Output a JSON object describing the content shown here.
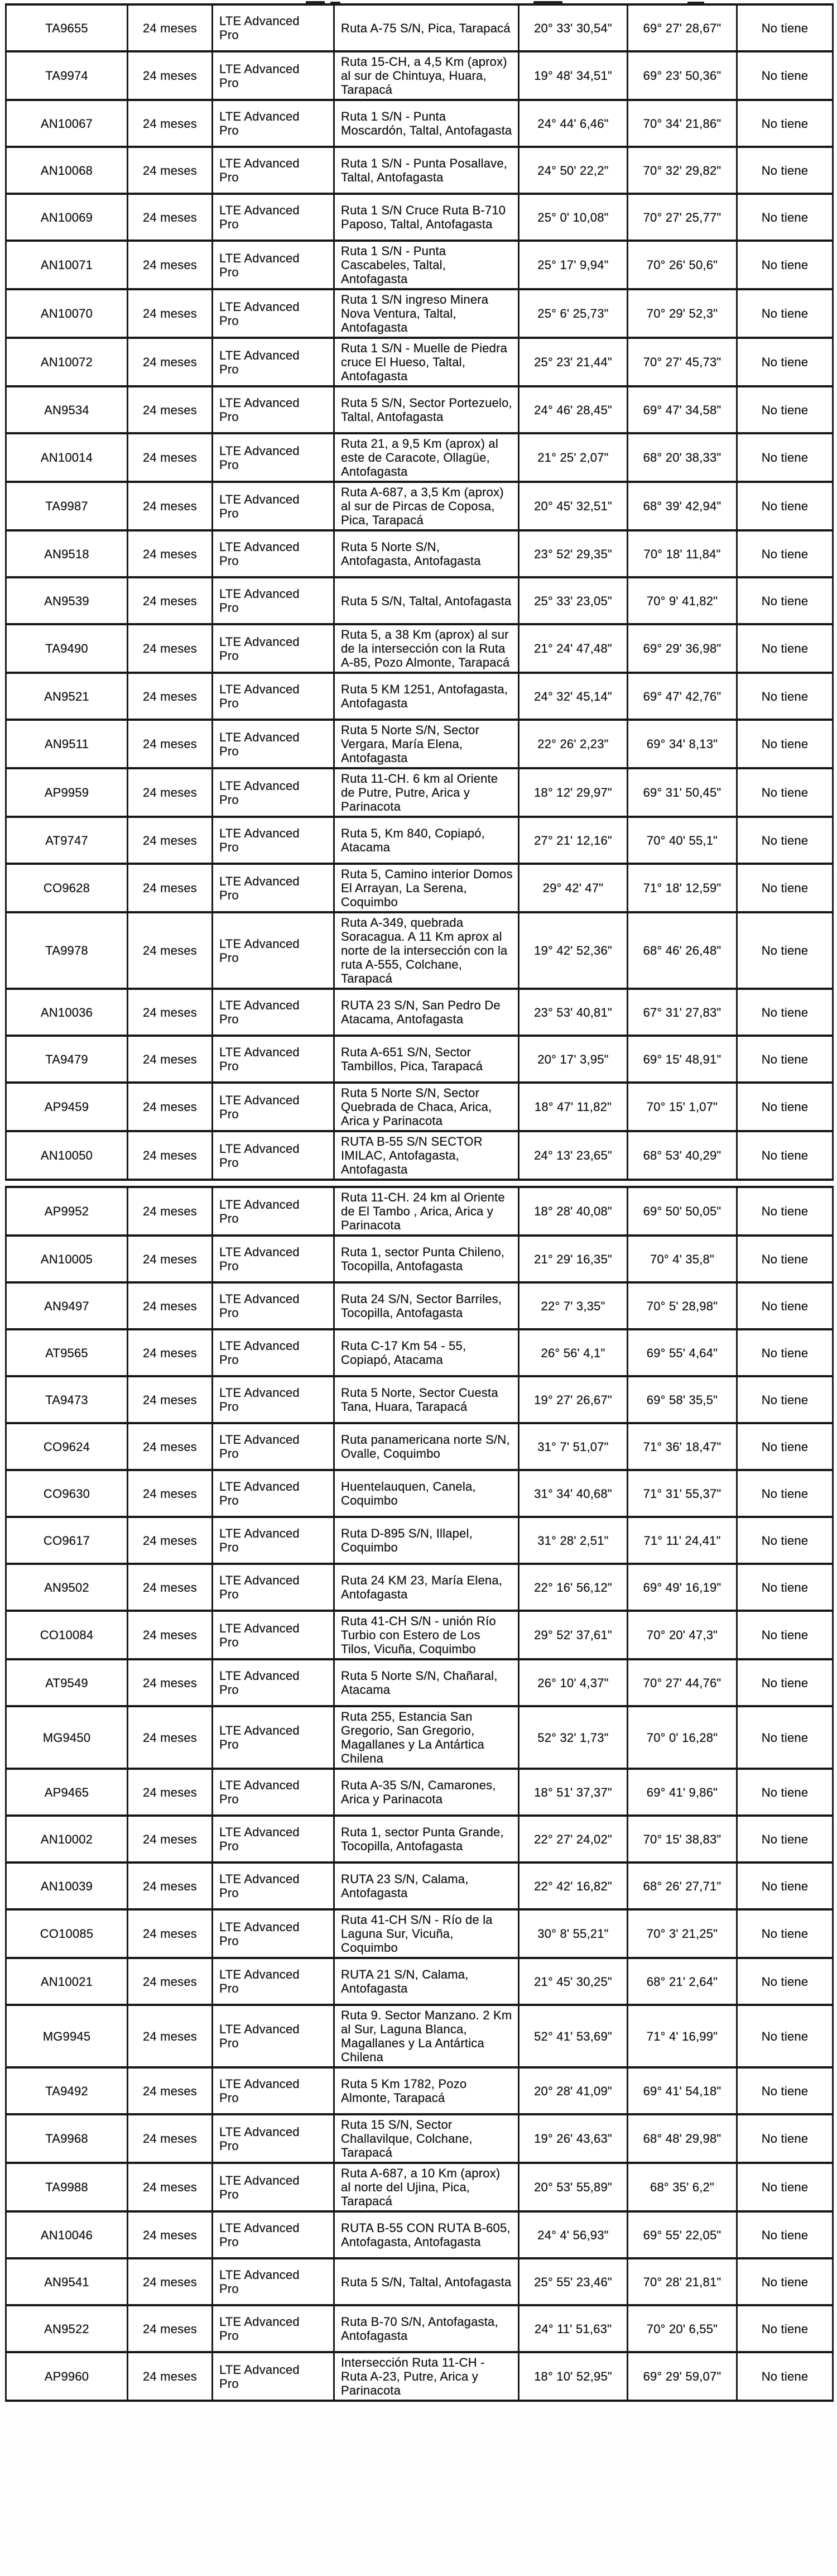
{
  "document": {
    "column_keys": [
      "codigo",
      "plazo",
      "tecnologia",
      "ubicacion",
      "latitud",
      "longitud",
      "observacion"
    ],
    "tables": [
      {
        "rows": [
          {
            "codigo": "TA9655",
            "plazo": "24 meses",
            "tecnologia": "LTE Advanced Pro",
            "ubicacion": "Ruta A-75 S/N, Pica, Tarapacá",
            "latitud": "20° 33' 30,54\"",
            "longitud": "69° 27' 28,67\"",
            "observacion": "No tiene"
          },
          {
            "codigo": "TA9974",
            "plazo": "24 meses",
            "tecnologia": "LTE Advanced Pro",
            "ubicacion": "Ruta 15-CH, a 4,5 Km (aprox) al sur de Chintuya, Huara, Tarapacá",
            "latitud": "19° 48' 34,51\"",
            "longitud": "69° 23' 50,36\"",
            "observacion": "No tiene"
          },
          {
            "codigo": "AN10067",
            "plazo": "24 meses",
            "tecnologia": "LTE Advanced Pro",
            "ubicacion": "Ruta 1 S/N - Punta Moscardón, Taltal, Antofagasta",
            "latitud": "24° 44' 6,46\"",
            "longitud": "70° 34' 21,86\"",
            "observacion": "No tiene"
          },
          {
            "codigo": "AN10068",
            "plazo": "24 meses",
            "tecnologia": "LTE Advanced Pro",
            "ubicacion": "Ruta 1 S/N - Punta Posallave, Taltal, Antofagasta",
            "latitud": "24° 50' 22,2\"",
            "longitud": "70° 32' 29,82\"",
            "observacion": "No tiene"
          },
          {
            "codigo": "AN10069",
            "plazo": "24 meses",
            "tecnologia": "LTE Advanced Pro",
            "ubicacion": "Ruta 1 S/N Cruce Ruta B-710 Paposo, Taltal, Antofagasta",
            "latitud": "25° 0' 10,08\"",
            "longitud": "70° 27' 25,77\"",
            "observacion": "No tiene"
          },
          {
            "codigo": "AN10071",
            "plazo": "24 meses",
            "tecnologia": "LTE Advanced Pro",
            "ubicacion": "Ruta 1 S/N - Punta Cascabeles, Taltal, Antofagasta",
            "latitud": "25° 17' 9,94\"",
            "longitud": "70° 26' 50,6\"",
            "observacion": "No tiene"
          },
          {
            "codigo": "AN10070",
            "plazo": "24 meses",
            "tecnologia": "LTE Advanced Pro",
            "ubicacion": "Ruta 1 S/N ingreso Minera Nova Ventura, Taltal, Antofagasta",
            "latitud": "25° 6' 25,73\"",
            "longitud": "70° 29' 52,3\"",
            "observacion": "No tiene"
          },
          {
            "codigo": "AN10072",
            "plazo": "24 meses",
            "tecnologia": "LTE Advanced Pro",
            "ubicacion": "Ruta 1 S/N - Muelle de Piedra cruce El Hueso, Taltal, Antofagasta",
            "latitud": "25° 23' 21,44\"",
            "longitud": "70° 27' 45,73\"",
            "observacion": "No tiene"
          },
          {
            "codigo": "AN9534",
            "plazo": "24 meses",
            "tecnologia": "LTE Advanced Pro",
            "ubicacion": "Ruta 5 S/N, Sector Portezuelo, Taltal, Antofagasta",
            "latitud": "24° 46' 28,45\"",
            "longitud": "69° 47' 34,58\"",
            "observacion": "No tiene"
          },
          {
            "codigo": "AN10014",
            "plazo": "24 meses",
            "tecnologia": "LTE Advanced Pro",
            "ubicacion": "Ruta 21, a 9,5 Km (aprox) al este de Caracote, Ollagüe, Antofagasta",
            "latitud": "21° 25' 2,07\"",
            "longitud": "68° 20' 38,33\"",
            "observacion": "No tiene"
          },
          {
            "codigo": "TA9987",
            "plazo": "24 meses",
            "tecnologia": "LTE Advanced Pro",
            "ubicacion": "Ruta A-687, a 3,5 Km (aprox) al sur de Pircas de Coposa, Pica, Tarapacá",
            "latitud": "20° 45' 32,51\"",
            "longitud": "68° 39' 42,94\"",
            "observacion": "No tiene"
          },
          {
            "codigo": "AN9518",
            "plazo": "24 meses",
            "tecnologia": "LTE Advanced Pro",
            "ubicacion": "Ruta 5 Norte S/N, Antofagasta, Antofagasta",
            "latitud": "23° 52' 29,35\"",
            "longitud": "70° 18' 11,84\"",
            "observacion": "No tiene"
          },
          {
            "codigo": "AN9539",
            "plazo": "24 meses",
            "tecnologia": "LTE Advanced Pro",
            "ubicacion": "Ruta 5 S/N, Taltal, Antofagasta",
            "latitud": "25° 33' 23,05\"",
            "longitud": "70° 9' 41,82\"",
            "observacion": "No tiene"
          },
          {
            "codigo": "TA9490",
            "plazo": "24 meses",
            "tecnologia": "LTE Advanced Pro",
            "ubicacion": "Ruta 5, a 38 Km (aprox) al sur de la intersección con la Ruta A-85, Pozo Almonte, Tarapacá",
            "latitud": "21° 24' 47,48\"",
            "longitud": "69° 29' 36,98\"",
            "observacion": "No tiene"
          },
          {
            "codigo": "AN9521",
            "plazo": "24 meses",
            "tecnologia": "LTE Advanced Pro",
            "ubicacion": "Ruta 5 KM 1251, Antofagasta, Antofagasta",
            "latitud": "24° 32' 45,14\"",
            "longitud": "69° 47' 42,76\"",
            "observacion": "No tiene"
          },
          {
            "codigo": "AN9511",
            "plazo": "24 meses",
            "tecnologia": "LTE Advanced Pro",
            "ubicacion": "Ruta 5 Norte S/N, Sector Vergara, María Elena, Antofagasta",
            "latitud": "22° 26' 2,23\"",
            "longitud": "69° 34' 8,13\"",
            "observacion": "No tiene"
          },
          {
            "codigo": "AP9959",
            "plazo": "24 meses",
            "tecnologia": "LTE Advanced Pro",
            "ubicacion": "Ruta 11-CH. 6 km al Oriente de Putre, Putre, Arica y Parinacota",
            "latitud": "18° 12' 29,97\"",
            "longitud": "69° 31' 50,45\"",
            "observacion": "No tiene"
          },
          {
            "codigo": "AT9747",
            "plazo": "24 meses",
            "tecnologia": "LTE Advanced Pro",
            "ubicacion": "Ruta 5, Km 840, Copiapó, Atacama",
            "latitud": "27° 21' 12,16\"",
            "longitud": "70° 40' 55,1\"",
            "observacion": "No tiene"
          },
          {
            "codigo": "CO9628",
            "plazo": "24 meses",
            "tecnologia": "LTE Advanced Pro",
            "ubicacion": "Ruta 5, Camino interior Domos El Arrayan, La Serena, Coquimbo",
            "latitud": "29° 42' 47\"",
            "longitud": "71° 18' 12,59\"",
            "observacion": "No tiene"
          },
          {
            "codigo": "TA9978",
            "plazo": "24 meses",
            "tecnologia": "LTE Advanced Pro",
            "ubicacion": "Ruta A-349, quebrada Soracagua. A 11 Km aprox al norte de la intersección con la ruta A-555, Colchane, Tarapacá",
            "latitud": "19° 42' 52,36\"",
            "longitud": "68° 46' 26,48\"",
            "observacion": "No tiene"
          },
          {
            "codigo": "AN10036",
            "plazo": "24 meses",
            "tecnologia": "LTE Advanced Pro",
            "ubicacion": "RUTA 23 S/N, San Pedro De Atacama, Antofagasta",
            "latitud": "23° 53' 40,81\"",
            "longitud": "67° 31' 27,83\"",
            "observacion": "No tiene"
          },
          {
            "codigo": "TA9479",
            "plazo": "24 meses",
            "tecnologia": "LTE Advanced Pro",
            "ubicacion": "Ruta A-651 S/N, Sector Tambillos, Pica, Tarapacá",
            "latitud": "20° 17' 3,95\"",
            "longitud": "69° 15' 48,91\"",
            "observacion": "No tiene"
          },
          {
            "codigo": "AP9459",
            "plazo": "24 meses",
            "tecnologia": "LTE Advanced Pro",
            "ubicacion": "Ruta 5 Norte S/N, Sector Quebrada de Chaca, Arica, Arica y Parinacota",
            "latitud": "18° 47' 11,82\"",
            "longitud": "70° 15' 1,07\"",
            "observacion": "No tiene"
          },
          {
            "codigo": "AN10050",
            "plazo": "24 meses",
            "tecnologia": "LTE Advanced Pro",
            "ubicacion": "RUTA B-55 S/N SECTOR IMILAC, Antofagasta, Antofagasta",
            "latitud": "24° 13' 23,65\"",
            "longitud": "68° 53' 40,29\"",
            "observacion": "No tiene"
          }
        ]
      },
      {
        "rows": [
          {
            "codigo": "AP9952",
            "plazo": "24 meses",
            "tecnologia": "LTE Advanced Pro",
            "ubicacion": "Ruta 11-CH. 24 km al Oriente de El Tambo , Arica, Arica y Parinacota",
            "latitud": "18° 28' 40,08\"",
            "longitud": "69° 50' 50,05\"",
            "observacion": "No tiene"
          },
          {
            "codigo": "AN10005",
            "plazo": "24 meses",
            "tecnologia": "LTE Advanced Pro",
            "ubicacion": "Ruta 1, sector Punta Chileno, Tocopilla, Antofagasta",
            "latitud": "21° 29' 16,35\"",
            "longitud": "70° 4' 35,8\"",
            "observacion": "No tiene"
          },
          {
            "codigo": "AN9497",
            "plazo": "24 meses",
            "tecnologia": "LTE Advanced Pro",
            "ubicacion": "Ruta 24 S/N, Sector Barriles, Tocopilla, Antofagasta",
            "latitud": "22° 7' 3,35\"",
            "longitud": "70° 5' 28,98\"",
            "observacion": "No tiene"
          },
          {
            "codigo": "AT9565",
            "plazo": "24 meses",
            "tecnologia": "LTE Advanced Pro",
            "ubicacion": "Ruta C-17 Km 54 - 55, Copiapó, Atacama",
            "latitud": "26° 56' 4,1\"",
            "longitud": "69° 55' 4,64\"",
            "observacion": "No tiene"
          },
          {
            "codigo": "TA9473",
            "plazo": "24 meses",
            "tecnologia": "LTE Advanced Pro",
            "ubicacion": "Ruta 5 Norte, Sector Cuesta Tana, Huara, Tarapacá",
            "latitud": "19° 27' 26,67\"",
            "longitud": "69° 58' 35,5\"",
            "observacion": "No tiene"
          },
          {
            "codigo": "CO9624",
            "plazo": "24 meses",
            "tecnologia": "LTE Advanced Pro",
            "ubicacion": "Ruta panamericana norte S/N, Ovalle, Coquimbo",
            "latitud": "31° 7' 51,07\"",
            "longitud": "71° 36' 18,47\"",
            "observacion": "No tiene"
          },
          {
            "codigo": "CO9630",
            "plazo": "24 meses",
            "tecnologia": "LTE Advanced Pro",
            "ubicacion": "Huentelauquen, Canela, Coquimbo",
            "latitud": "31° 34' 40,68\"",
            "longitud": "71° 31' 55,37\"",
            "observacion": "No tiene"
          },
          {
            "codigo": "CO9617",
            "plazo": "24 meses",
            "tecnologia": "LTE Advanced Pro",
            "ubicacion": "Ruta D-895 S/N, Illapel, Coquimbo",
            "latitud": "31° 28' 2,51\"",
            "longitud": "71° 11' 24,41\"",
            "observacion": "No tiene"
          },
          {
            "codigo": "AN9502",
            "plazo": "24 meses",
            "tecnologia": "LTE Advanced Pro",
            "ubicacion": "Ruta 24 KM 23, María Elena, Antofagasta",
            "latitud": "22° 16' 56,12\"",
            "longitud": "69° 49' 16,19\"",
            "observacion": "No tiene"
          },
          {
            "codigo": "CO10084",
            "plazo": "24 meses",
            "tecnologia": "LTE Advanced Pro",
            "ubicacion": "Ruta 41-CH S/N - unión Río Turbio con Estero de Los Tilos, Vicuña, Coquimbo",
            "latitud": "29° 52' 37,61\"",
            "longitud": "70° 20' 47,3\"",
            "observacion": "No tiene"
          },
          {
            "codigo": "AT9549",
            "plazo": "24 meses",
            "tecnologia": "LTE Advanced Pro",
            "ubicacion": "Ruta 5 Norte S/N, Chañaral, Atacama",
            "latitud": "26° 10' 4,37\"",
            "longitud": "70° 27' 44,76\"",
            "observacion": "No tiene"
          },
          {
            "codigo": "MG9450",
            "plazo": "24 meses",
            "tecnologia": "LTE Advanced Pro",
            "ubicacion": "Ruta 255, Estancia San Gregorio, San Gregorio, Magallanes y La Antártica Chilena",
            "latitud": "52° 32' 1,73\"",
            "longitud": "70° 0' 16,28\"",
            "observacion": "No tiene"
          },
          {
            "codigo": "AP9465",
            "plazo": "24 meses",
            "tecnologia": "LTE Advanced Pro",
            "ubicacion": "Ruta A-35 S/N, Camarones, Arica y Parinacota",
            "latitud": "18° 51' 37,37\"",
            "longitud": "69° 41' 9,86\"",
            "observacion": "No tiene"
          },
          {
            "codigo": "AN10002",
            "plazo": "24 meses",
            "tecnologia": "LTE Advanced Pro",
            "ubicacion": "Ruta 1, sector Punta Grande, Tocopilla, Antofagasta",
            "latitud": "22° 27' 24,02\"",
            "longitud": "70° 15' 38,83\"",
            "observacion": "No tiene"
          },
          {
            "codigo": "AN10039",
            "plazo": "24 meses",
            "tecnologia": "LTE Advanced Pro",
            "ubicacion": "RUTA 23 S/N, Calama, Antofagasta",
            "latitud": "22° 42' 16,82\"",
            "longitud": "68° 26' 27,71\"",
            "observacion": "No tiene"
          },
          {
            "codigo": "CO10085",
            "plazo": "24 meses",
            "tecnologia": "LTE Advanced Pro",
            "ubicacion": "Ruta 41-CH S/N - Río de la Laguna Sur, Vicuña, Coquimbo",
            "latitud": "30° 8' 55,21\"",
            "longitud": "70° 3' 21,25\"",
            "observacion": "No tiene"
          },
          {
            "codigo": "AN10021",
            "plazo": "24 meses",
            "tecnologia": "LTE Advanced Pro",
            "ubicacion": "RUTA 21 S/N, Calama, Antofagasta",
            "latitud": "21° 45' 30,25\"",
            "longitud": "68° 21' 2,64\"",
            "observacion": "No tiene"
          },
          {
            "codigo": "MG9945",
            "plazo": "24 meses",
            "tecnologia": "LTE Advanced Pro",
            "ubicacion": "Ruta 9. Sector Manzano. 2 Km al Sur, Laguna Blanca, Magallanes y La Antártica Chilena",
            "latitud": "52° 41' 53,69\"",
            "longitud": "71° 4' 16,99\"",
            "observacion": "No tiene"
          },
          {
            "codigo": "TA9492",
            "plazo": "24 meses",
            "tecnologia": "LTE Advanced Pro",
            "ubicacion": "Ruta 5 Km 1782, Pozo Almonte, Tarapacá",
            "latitud": "20° 28' 41,09\"",
            "longitud": "69° 41' 54,18\"",
            "observacion": "No tiene"
          },
          {
            "codigo": "TA9968",
            "plazo": "24 meses",
            "tecnologia": "LTE Advanced Pro",
            "ubicacion": "Ruta 15 S/N, Sector Challavilque, Colchane, Tarapacá",
            "latitud": "19° 26' 43,63\"",
            "longitud": "68° 48' 29,98\"",
            "observacion": "No tiene"
          },
          {
            "codigo": "TA9988",
            "plazo": "24 meses",
            "tecnologia": "LTE Advanced Pro",
            "ubicacion": "Ruta A-687, a 10 Km (aprox) al norte del Ujina, Pica, Tarapacá",
            "latitud": "20° 53' 55,89\"",
            "longitud": "68° 35' 6,2\"",
            "observacion": "No tiene"
          },
          {
            "codigo": "AN10046",
            "plazo": "24 meses",
            "tecnologia": "LTE Advanced Pro",
            "ubicacion": "RUTA B-55 CON RUTA B-605, Antofagasta, Antofagasta",
            "latitud": "24° 4' 56,93\"",
            "longitud": "69° 55' 22,05\"",
            "observacion": "No tiene"
          },
          {
            "codigo": "AN9541",
            "plazo": "24 meses",
            "tecnologia": "LTE Advanced Pro",
            "ubicacion": "Ruta 5 S/N, Taltal, Antofagasta",
            "latitud": "25° 55' 23,46\"",
            "longitud": "70° 28' 21,81\"",
            "observacion": "No tiene"
          },
          {
            "codigo": "AN9522",
            "plazo": "24 meses",
            "tecnologia": "LTE Advanced Pro",
            "ubicacion": "Ruta B-70 S/N, Antofagasta, Antofagasta",
            "latitud": "24° 11' 51,63\"",
            "longitud": "70° 20' 6,55\"",
            "observacion": "No tiene"
          },
          {
            "codigo": "AP9960",
            "plazo": "24 meses",
            "tecnologia": "LTE Advanced Pro",
            "ubicacion": "Intersección Ruta 11-CH - Ruta A-23, Putre, Arica y Parinacota",
            "latitud": "18° 10' 52,95\"",
            "longitud": "69° 29' 59,07\"",
            "observacion": "No tiene"
          }
        ]
      }
    ]
  }
}
